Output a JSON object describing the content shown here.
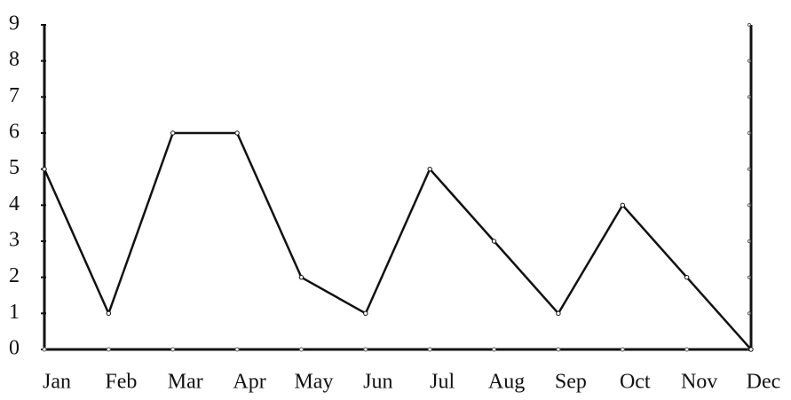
{
  "chart_data": {
    "type": "line",
    "categories": [
      "Jan",
      "Feb",
      "Mar",
      "Apr",
      "May",
      "Jun",
      "Jul",
      "Aug",
      "Sep",
      "Oct",
      "Nov",
      "Dec"
    ],
    "values": [
      5,
      1,
      6,
      6,
      2,
      1,
      5,
      3,
      1,
      4,
      2,
      0
    ],
    "color": "#111111",
    "ylim": [
      0,
      9
    ],
    "yticks": [
      0,
      1,
      2,
      3,
      4,
      5,
      6,
      7,
      8,
      9
    ],
    "grid": false
  }
}
